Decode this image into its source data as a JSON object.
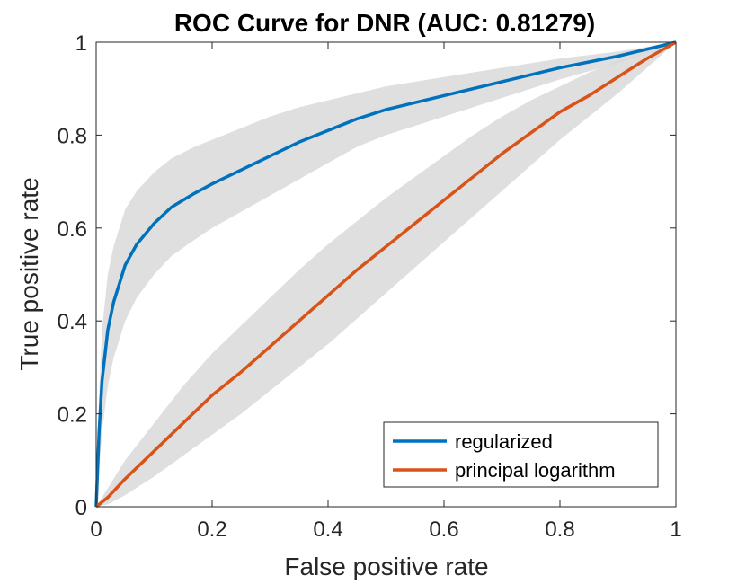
{
  "chart_data": {
    "type": "line",
    "title": "ROC Curve for DNR (AUC: 0.81279)",
    "xlabel": "False positive rate",
    "ylabel": "True positive rate",
    "xlim": [
      0,
      1
    ],
    "ylim": [
      0,
      1
    ],
    "xticks": [
      0,
      0.2,
      0.4,
      0.6,
      0.8,
      1
    ],
    "yticks": [
      0,
      0.2,
      0.4,
      0.6,
      0.8,
      1
    ],
    "xtick_labels": [
      "0",
      "0.2",
      "0.4",
      "0.6",
      "0.8",
      "1"
    ],
    "ytick_labels": [
      "0",
      "0.2",
      "0.4",
      "0.6",
      "0.8",
      "1"
    ],
    "grid": false,
    "legend_position": "bottom-right",
    "band_color": "#d9d9d9",
    "series": [
      {
        "name": "regularized",
        "color": "#0072BD",
        "x": [
          0,
          0.005,
          0.01,
          0.02,
          0.03,
          0.05,
          0.07,
          0.1,
          0.13,
          0.17,
          0.2,
          0.25,
          0.3,
          0.35,
          0.4,
          0.45,
          0.5,
          0.6,
          0.7,
          0.8,
          0.9,
          0.95,
          1.0
        ],
        "y": [
          0,
          0.16,
          0.27,
          0.38,
          0.44,
          0.52,
          0.565,
          0.61,
          0.645,
          0.675,
          0.695,
          0.725,
          0.755,
          0.785,
          0.81,
          0.835,
          0.855,
          0.885,
          0.915,
          0.945,
          0.97,
          0.985,
          1.0
        ],
        "upper": [
          0,
          0.24,
          0.38,
          0.5,
          0.56,
          0.64,
          0.68,
          0.72,
          0.75,
          0.775,
          0.79,
          0.815,
          0.84,
          0.86,
          0.875,
          0.89,
          0.905,
          0.925,
          0.945,
          0.965,
          0.98,
          0.99,
          1.0
        ],
        "lower": [
          0,
          0.08,
          0.16,
          0.26,
          0.32,
          0.4,
          0.45,
          0.5,
          0.54,
          0.575,
          0.6,
          0.635,
          0.67,
          0.705,
          0.74,
          0.775,
          0.8,
          0.84,
          0.88,
          0.92,
          0.955,
          0.975,
          1.0
        ]
      },
      {
        "name": "principal logarithm",
        "color": "#D95319",
        "x": [
          0,
          0.02,
          0.05,
          0.1,
          0.15,
          0.2,
          0.25,
          0.3,
          0.35,
          0.4,
          0.45,
          0.5,
          0.55,
          0.6,
          0.65,
          0.7,
          0.75,
          0.8,
          0.85,
          0.9,
          0.95,
          1.0
        ],
        "y": [
          0,
          0.02,
          0.06,
          0.12,
          0.18,
          0.24,
          0.29,
          0.345,
          0.4,
          0.455,
          0.51,
          0.56,
          0.61,
          0.66,
          0.71,
          0.76,
          0.805,
          0.85,
          0.885,
          0.925,
          0.965,
          1.0
        ],
        "upper": [
          0,
          0.04,
          0.1,
          0.18,
          0.26,
          0.33,
          0.39,
          0.45,
          0.51,
          0.565,
          0.615,
          0.665,
          0.71,
          0.755,
          0.8,
          0.84,
          0.875,
          0.905,
          0.935,
          0.96,
          0.98,
          1.0
        ],
        "lower": [
          0,
          0.005,
          0.025,
          0.065,
          0.11,
          0.155,
          0.2,
          0.25,
          0.3,
          0.35,
          0.405,
          0.46,
          0.515,
          0.57,
          0.625,
          0.68,
          0.735,
          0.79,
          0.84,
          0.89,
          0.945,
          1.0
        ]
      }
    ]
  }
}
